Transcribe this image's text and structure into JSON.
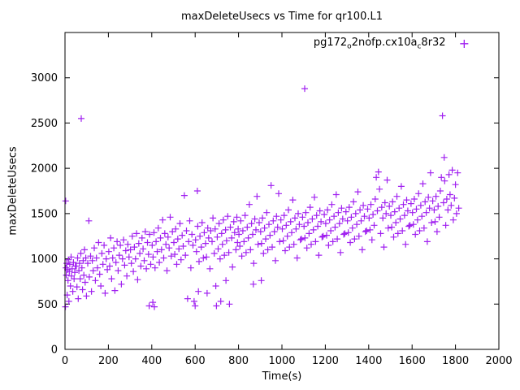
{
  "chart_data": {
    "type": "scatter",
    "title": "maxDeleteUsecs vs Time for qr100.L1",
    "xlabel": "Time(s)",
    "ylabel": "maxDeleteUsecs",
    "xlim": [
      0,
      2000
    ],
    "ylim": [
      0,
      3500
    ],
    "xticks": [
      0,
      200,
      400,
      600,
      800,
      1000,
      1200,
      1400,
      1600,
      1800,
      2000
    ],
    "yticks": [
      0,
      500,
      1000,
      1500,
      2000,
      2500,
      3000
    ],
    "grid": false,
    "legend_position": "top-right-inside",
    "marker": "plus",
    "point_color": "#A020F0",
    "legend": {
      "prefix": "pg172",
      "sub1": "o",
      "mid": "2nofp.cx10a",
      "sub2": "c",
      "suffix": "8r32",
      "marker_glyph": "+"
    },
    "series_name": "pg172_o2nofp.cx10a_c8r32",
    "points": [
      [
        2,
        470
      ],
      [
        3,
        1640
      ],
      [
        4,
        900
      ],
      [
        6,
        820
      ],
      [
        8,
        950
      ],
      [
        10,
        600
      ],
      [
        12,
        880
      ],
      [
        14,
        760
      ],
      [
        16,
        990
      ],
      [
        18,
        530
      ],
      [
        20,
        860
      ],
      [
        22,
        940
      ],
      [
        25,
        700
      ],
      [
        28,
        1020
      ],
      [
        30,
        810
      ],
      [
        33,
        890
      ],
      [
        36,
        640
      ],
      [
        39,
        960
      ],
      [
        42,
        780
      ],
      [
        45,
        850
      ],
      [
        48,
        920
      ],
      [
        52,
        920
      ],
      [
        55,
        690
      ],
      [
        58,
        1010
      ],
      [
        61,
        560
      ],
      [
        64,
        870
      ],
      [
        67,
        950
      ],
      [
        70,
        780
      ],
      [
        73,
        1060
      ],
      [
        75,
        2550
      ],
      [
        78,
        900
      ],
      [
        81,
        660
      ],
      [
        84,
        980
      ],
      [
        87,
        820
      ],
      [
        90,
        1100
      ],
      [
        93,
        740
      ],
      [
        96,
        1010
      ],
      [
        99,
        590
      ],
      [
        105,
        950
      ],
      [
        110,
        1420
      ],
      [
        112,
        800
      ],
      [
        118,
        1030
      ],
      [
        122,
        640
      ],
      [
        126,
        980
      ],
      [
        130,
        870
      ],
      [
        135,
        1120
      ],
      [
        140,
        760
      ],
      [
        145,
        1010
      ],
      [
        150,
        900
      ],
      [
        155,
        1180
      ],
      [
        160,
        830
      ],
      [
        165,
        700
      ],
      [
        170,
        1060
      ],
      [
        175,
        940
      ],
      [
        180,
        1150
      ],
      [
        185,
        620
      ],
      [
        190,
        1000
      ],
      [
        195,
        880
      ],
      [
        202,
        1080
      ],
      [
        206,
        920
      ],
      [
        210,
        1230
      ],
      [
        215,
        780
      ],
      [
        220,
        1010
      ],
      [
        225,
        1120
      ],
      [
        230,
        650
      ],
      [
        235,
        960
      ],
      [
        240,
        1190
      ],
      [
        245,
        870
      ],
      [
        250,
        1040
      ],
      [
        255,
        1150
      ],
      [
        260,
        720
      ],
      [
        265,
        1000
      ],
      [
        270,
        1210
      ],
      [
        275,
        930
      ],
      [
        280,
        1090
      ],
      [
        285,
        810
      ],
      [
        290,
        1160
      ],
      [
        295,
        1020
      ],
      [
        302,
        1100
      ],
      [
        306,
        950
      ],
      [
        310,
        1250
      ],
      [
        315,
        860
      ],
      [
        320,
        1130
      ],
      [
        325,
        1000
      ],
      [
        330,
        1280
      ],
      [
        335,
        770
      ],
      [
        340,
        1170
      ],
      [
        345,
        1060
      ],
      [
        350,
        920
      ],
      [
        355,
        1230
      ],
      [
        360,
        1110
      ],
      [
        365,
        980
      ],
      [
        370,
        1300
      ],
      [
        375,
        890
      ],
      [
        380,
        1180
      ],
      [
        385,
        1050
      ],
      [
        388,
        480
      ],
      [
        390,
        1270
      ],
      [
        395,
        940
      ],
      [
        402,
        1150
      ],
      [
        405,
        520
      ],
      [
        406,
        1020
      ],
      [
        410,
        1290
      ],
      [
        412,
        470
      ],
      [
        415,
        900
      ],
      [
        420,
        1190
      ],
      [
        425,
        1080
      ],
      [
        430,
        1340
      ],
      [
        435,
        960
      ],
      [
        440,
        1230
      ],
      [
        445,
        1100
      ],
      [
        450,
        1430
      ],
      [
        455,
        1010
      ],
      [
        460,
        1280
      ],
      [
        465,
        1160
      ],
      [
        470,
        870
      ],
      [
        475,
        1240
      ],
      [
        480,
        1120
      ],
      [
        485,
        1460
      ],
      [
        490,
        1030
      ],
      [
        495,
        1300
      ],
      [
        502,
        1180
      ],
      [
        506,
        1050
      ],
      [
        510,
        1330
      ],
      [
        515,
        940
      ],
      [
        520,
        1220
      ],
      [
        525,
        1110
      ],
      [
        530,
        1390
      ],
      [
        535,
        990
      ],
      [
        540,
        1260
      ],
      [
        545,
        1140
      ],
      [
        550,
        1700
      ],
      [
        555,
        1040
      ],
      [
        560,
        1310
      ],
      [
        565,
        560
      ],
      [
        570,
        1190
      ],
      [
        575,
        1420
      ],
      [
        580,
        900
      ],
      [
        585,
        1270
      ],
      [
        590,
        1150
      ],
      [
        595,
        530
      ],
      [
        600,
        480
      ],
      [
        602,
        1210
      ],
      [
        606,
        1080
      ],
      [
        610,
        1750
      ],
      [
        612,
        1360
      ],
      [
        615,
        640
      ],
      [
        618,
        970
      ],
      [
        622,
        1250
      ],
      [
        628,
        1130
      ],
      [
        632,
        1400
      ],
      [
        638,
        1010
      ],
      [
        642,
        1290
      ],
      [
        648,
        1170
      ],
      [
        652,
        1020
      ],
      [
        655,
        620
      ],
      [
        658,
        1340
      ],
      [
        662,
        1230
      ],
      [
        668,
        890
      ],
      [
        672,
        1310
      ],
      [
        678,
        1190
      ],
      [
        682,
        1450
      ],
      [
        688,
        1060
      ],
      [
        692,
        1330
      ],
      [
        695,
        700
      ],
      [
        698,
        480
      ],
      [
        702,
        1240
      ],
      [
        706,
        1110
      ],
      [
        710,
        1390
      ],
      [
        715,
        1000
      ],
      [
        718,
        530
      ],
      [
        722,
        1280
      ],
      [
        726,
        1160
      ],
      [
        730,
        1430
      ],
      [
        735,
        1040
      ],
      [
        740,
        1320
      ],
      [
        742,
        760
      ],
      [
        745,
        1200
      ],
      [
        750,
        1470
      ],
      [
        755,
        1070
      ],
      [
        758,
        500
      ],
      [
        762,
        1350
      ],
      [
        768,
        1230
      ],
      [
        772,
        910
      ],
      [
        778,
        1410
      ],
      [
        782,
        1290
      ],
      [
        788,
        1100
      ],
      [
        792,
        1460
      ],
      [
        795,
        1180
      ],
      [
        798,
        1330
      ],
      [
        802,
        1270
      ],
      [
        806,
        1140
      ],
      [
        810,
        1420
      ],
      [
        815,
        1030
      ],
      [
        820,
        1310
      ],
      [
        825,
        1190
      ],
      [
        830,
        1480
      ],
      [
        835,
        1070
      ],
      [
        840,
        1350
      ],
      [
        845,
        1230
      ],
      [
        850,
        1600
      ],
      [
        855,
        1100
      ],
      [
        860,
        1390
      ],
      [
        865,
        1270
      ],
      [
        868,
        720
      ],
      [
        870,
        950
      ],
      [
        875,
        1440
      ],
      [
        880,
        1320
      ],
      [
        885,
        1690
      ],
      [
        890,
        1160
      ],
      [
        895,
        1400
      ],
      [
        902,
        1300
      ],
      [
        905,
        760
      ],
      [
        906,
        1170
      ],
      [
        910,
        1450
      ],
      [
        915,
        1060
      ],
      [
        920,
        1340
      ],
      [
        925,
        1220
      ],
      [
        930,
        1510
      ],
      [
        935,
        1100
      ],
      [
        940,
        1380
      ],
      [
        945,
        1260
      ],
      [
        950,
        1810
      ],
      [
        955,
        1130
      ],
      [
        960,
        1420
      ],
      [
        965,
        1300
      ],
      [
        970,
        980
      ],
      [
        975,
        1470
      ],
      [
        980,
        1350
      ],
      [
        985,
        1720
      ],
      [
        990,
        1190
      ],
      [
        995,
        1430
      ],
      [
        1002,
        1330
      ],
      [
        1006,
        1200
      ],
      [
        1010,
        1480
      ],
      [
        1015,
        1090
      ],
      [
        1020,
        1370
      ],
      [
        1025,
        1250
      ],
      [
        1030,
        1540
      ],
      [
        1035,
        1130
      ],
      [
        1040,
        1410
      ],
      [
        1045,
        1290
      ],
      [
        1050,
        1650
      ],
      [
        1055,
        1160
      ],
      [
        1060,
        1450
      ],
      [
        1065,
        1330
      ],
      [
        1070,
        1010
      ],
      [
        1075,
        1500
      ],
      [
        1080,
        1380
      ],
      [
        1085,
        1210
      ],
      [
        1090,
        1220
      ],
      [
        1095,
        1460
      ],
      [
        1102,
        1360
      ],
      [
        1105,
        2880
      ],
      [
        1106,
        1230
      ],
      [
        1110,
        1510
      ],
      [
        1115,
        1120
      ],
      [
        1120,
        1400
      ],
      [
        1125,
        1280
      ],
      [
        1130,
        1570
      ],
      [
        1135,
        1160
      ],
      [
        1140,
        1440
      ],
      [
        1145,
        1320
      ],
      [
        1150,
        1680
      ],
      [
        1155,
        1190
      ],
      [
        1160,
        1480
      ],
      [
        1165,
        1360
      ],
      [
        1170,
        1040
      ],
      [
        1175,
        1530
      ],
      [
        1180,
        1410
      ],
      [
        1185,
        1240
      ],
      [
        1190,
        1250
      ],
      [
        1195,
        1490
      ],
      [
        1202,
        1390
      ],
      [
        1206,
        1260
      ],
      [
        1210,
        1540
      ],
      [
        1215,
        1150
      ],
      [
        1220,
        1430
      ],
      [
        1225,
        1310
      ],
      [
        1230,
        1600
      ],
      [
        1235,
        1190
      ],
      [
        1240,
        1470
      ],
      [
        1245,
        1350
      ],
      [
        1250,
        1710
      ],
      [
        1255,
        1220
      ],
      [
        1260,
        1510
      ],
      [
        1265,
        1390
      ],
      [
        1270,
        1070
      ],
      [
        1275,
        1560
      ],
      [
        1280,
        1440
      ],
      [
        1285,
        1270
      ],
      [
        1290,
        1280
      ],
      [
        1295,
        1520
      ],
      [
        1302,
        1420
      ],
      [
        1306,
        1290
      ],
      [
        1310,
        1570
      ],
      [
        1315,
        1180
      ],
      [
        1320,
        1460
      ],
      [
        1325,
        1340
      ],
      [
        1330,
        1630
      ],
      [
        1335,
        1220
      ],
      [
        1340,
        1500
      ],
      [
        1345,
        1380
      ],
      [
        1350,
        1740
      ],
      [
        1355,
        1250
      ],
      [
        1360,
        1540
      ],
      [
        1365,
        1420
      ],
      [
        1370,
        1100
      ],
      [
        1375,
        1590
      ],
      [
        1380,
        1470
      ],
      [
        1385,
        1300
      ],
      [
        1390,
        1310
      ],
      [
        1395,
        1550
      ],
      [
        1402,
        1450
      ],
      [
        1406,
        1320
      ],
      [
        1410,
        1600
      ],
      [
        1415,
        1210
      ],
      [
        1420,
        1490
      ],
      [
        1425,
        1370
      ],
      [
        1430,
        1660
      ],
      [
        1435,
        1900
      ],
      [
        1440,
        1530
      ],
      [
        1445,
        1960
      ],
      [
        1450,
        1770
      ],
      [
        1455,
        1280
      ],
      [
        1460,
        1570
      ],
      [
        1465,
        1450
      ],
      [
        1470,
        1130
      ],
      [
        1475,
        1620
      ],
      [
        1480,
        1500
      ],
      [
        1485,
        1870
      ],
      [
        1490,
        1340
      ],
      [
        1495,
        1580
      ],
      [
        1502,
        1480
      ],
      [
        1506,
        1350
      ],
      [
        1510,
        1630
      ],
      [
        1515,
        1240
      ],
      [
        1520,
        1520
      ],
      [
        1525,
        1400
      ],
      [
        1530,
        1690
      ],
      [
        1535,
        1280
      ],
      [
        1540,
        1560
      ],
      [
        1545,
        1440
      ],
      [
        1550,
        1800
      ],
      [
        1555,
        1310
      ],
      [
        1560,
        1600
      ],
      [
        1565,
        1480
      ],
      [
        1570,
        1160
      ],
      [
        1575,
        1650
      ],
      [
        1580,
        1530
      ],
      [
        1585,
        1360
      ],
      [
        1590,
        1370
      ],
      [
        1595,
        1610
      ],
      [
        1602,
        1510
      ],
      [
        1606,
        1380
      ],
      [
        1610,
        1660
      ],
      [
        1615,
        1270
      ],
      [
        1620,
        1550
      ],
      [
        1625,
        1430
      ],
      [
        1630,
        1720
      ],
      [
        1635,
        1310
      ],
      [
        1640,
        1590
      ],
      [
        1645,
        1470
      ],
      [
        1650,
        1830
      ],
      [
        1655,
        1340
      ],
      [
        1660,
        1630
      ],
      [
        1665,
        1510
      ],
      [
        1670,
        1190
      ],
      [
        1675,
        1680
      ],
      [
        1680,
        1560
      ],
      [
        1685,
        1950
      ],
      [
        1690,
        1400
      ],
      [
        1695,
        1640
      ],
      [
        1702,
        1540
      ],
      [
        1706,
        1410
      ],
      [
        1710,
        1690
      ],
      [
        1715,
        1300
      ],
      [
        1720,
        1580
      ],
      [
        1725,
        1460
      ],
      [
        1730,
        1750
      ],
      [
        1735,
        1900
      ],
      [
        1740,
        2580
      ],
      [
        1745,
        1620
      ],
      [
        1748,
        2120
      ],
      [
        1750,
        1860
      ],
      [
        1755,
        1370
      ],
      [
        1760,
        1660
      ],
      [
        1765,
        1540
      ],
      [
        1770,
        1930
      ],
      [
        1775,
        1710
      ],
      [
        1780,
        1590
      ],
      [
        1785,
        1980
      ],
      [
        1790,
        1430
      ],
      [
        1795,
        1670
      ],
      [
        1800,
        1820
      ],
      [
        1805,
        1500
      ],
      [
        1810,
        1950
      ],
      [
        1815,
        1560
      ]
    ]
  }
}
